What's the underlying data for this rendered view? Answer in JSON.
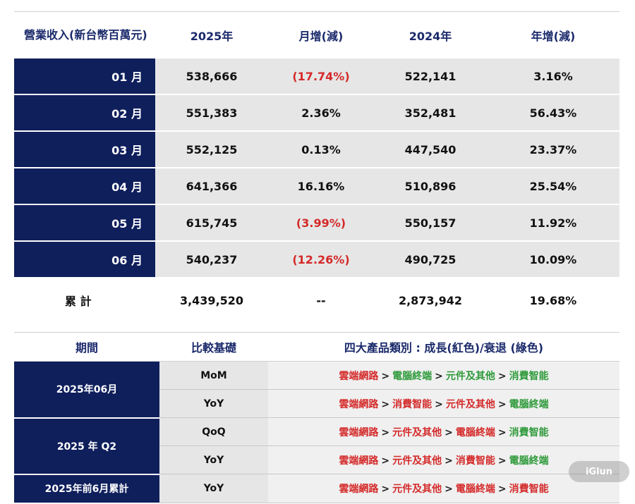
{
  "revenue_table": {
    "headers": [
      "營業收入(新台幣百萬元)",
      "2025年",
      "月增(減)",
      "2024年",
      "年增(減)"
    ],
    "rows": [
      {
        "month": "01 月",
        "y2025": "538,666",
        "mom": "(17.74%)",
        "y2024": "522,141",
        "yoy": "3.16%"
      },
      {
        "month": "02 月",
        "y2025": "551,383",
        "mom": "2.36%",
        "y2024": "352,481",
        "yoy": "56.43%"
      },
      {
        "month": "03 月",
        "y2025": "552,125",
        "mom": "0.13%",
        "y2024": "447,540",
        "yoy": "23.37%"
      },
      {
        "month": "04 月",
        "y2025": "641,366",
        "mom": "16.16%",
        "y2024": "510,896",
        "yoy": "25.54%"
      },
      {
        "month": "05 月",
        "y2025": "615,745",
        "mom": "(3.99%)",
        "y2024": "550,157",
        "yoy": "11.92%"
      },
      {
        "month": "06 月",
        "y2025": "540,237",
        "mom": "(12.26%)",
        "y2024": "490,725",
        "yoy": "10.09%"
      }
    ],
    "total": {
      "label": "累 計",
      "y2025": "3,439,520",
      "mom": "--",
      "y2024": "2,873,942",
      "yoy": "19.68%"
    }
  },
  "category_table": {
    "headers": [
      "期間",
      "比較基礎",
      "四大產品類別 : 成長(紅色)/衰退 (綠色)"
    ],
    "rows": [
      {
        "period": "2025年06月",
        "base": "MoM",
        "items": [
          [
            "雲端網路",
            "r"
          ],
          [
            "電腦終端",
            "g"
          ],
          [
            "元件及其他",
            "g"
          ],
          [
            "消費智能",
            "g"
          ]
        ]
      },
      {
        "period": "",
        "base": "YoY",
        "items": [
          [
            "雲端網路",
            "r"
          ],
          [
            "消費智能",
            "r"
          ],
          [
            "元件及其他",
            "r"
          ],
          [
            "電腦終端",
            "g"
          ]
        ]
      },
      {
        "period": "2025 年 Q2",
        "base": "QoQ",
        "items": [
          [
            "雲端網路",
            "r"
          ],
          [
            "元件及其他",
            "r"
          ],
          [
            "電腦終端",
            "r"
          ],
          [
            "消費智能",
            "g"
          ]
        ]
      },
      {
        "period": "",
        "base": "YoY",
        "items": [
          [
            "雲端網路",
            "r"
          ],
          [
            "元件及其他",
            "r"
          ],
          [
            "消費智能",
            "r"
          ],
          [
            "電腦終端",
            "g"
          ]
        ]
      },
      {
        "period": "2025年前6月累計",
        "base": "YoY",
        "items": [
          [
            "雲端網路",
            "r"
          ],
          [
            "元件及其他",
            "r"
          ],
          [
            "電腦終端",
            "r"
          ],
          [
            "消費智能",
            "r"
          ]
        ]
      }
    ],
    "separator": ">"
  },
  "watermark": "iGlun",
  "colors": {
    "navy": "#0f1f5c",
    "growth_red": "#d42a2a",
    "decline_green": "#2e9a3a",
    "cell_gray": "#e6e6e6"
  }
}
